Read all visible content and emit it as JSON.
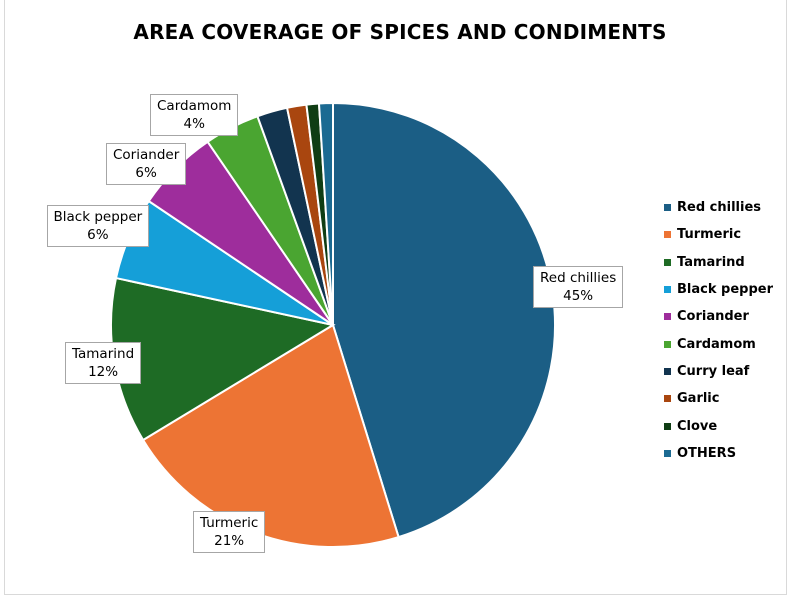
{
  "chart_data": {
    "type": "pie",
    "title": "AREA COVERAGE OF SPICES AND CONDIMENTS",
    "legend_position": "right",
    "slices": [
      {
        "label": "Red chillies",
        "value": 45,
        "display": "45%",
        "color": "#1b5e85",
        "shows_label": true
      },
      {
        "label": "Turmeric",
        "value": 21,
        "display": "21%",
        "color": "#ed7434",
        "shows_label": true
      },
      {
        "label": "Tamarind",
        "value": 12,
        "display": "12%",
        "color": "#1e6b25",
        "shows_label": true
      },
      {
        "label": "Black pepper",
        "value": 6,
        "display": "6%",
        "color": "#159fd8",
        "shows_label": true
      },
      {
        "label": "Coriander",
        "value": 6,
        "display": "6%",
        "color": "#9e2d9c",
        "shows_label": true
      },
      {
        "label": "Cardamom",
        "value": 4,
        "display": "4%",
        "color": "#4aa531",
        "shows_label": true
      },
      {
        "label": "Curry leaf",
        "value": 2.2,
        "display": "",
        "color": "#12344f",
        "shows_label": false
      },
      {
        "label": "Garlic",
        "value": 1.4,
        "display": "",
        "color": "#a9460f",
        "shows_label": false
      },
      {
        "label": "Clove",
        "value": 0.9,
        "display": "",
        "color": "#0f3d14",
        "shows_label": false
      },
      {
        "label": "OTHERS",
        "value": 1.0,
        "display": "",
        "color": "#1b6a92",
        "shows_label": false
      }
    ]
  }
}
